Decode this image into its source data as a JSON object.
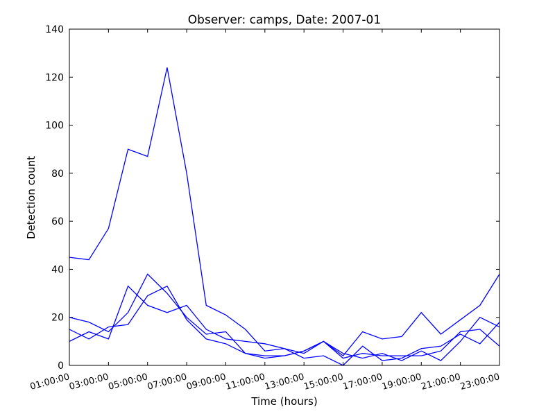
{
  "chart_data": {
    "type": "line",
    "title": "Observer: camps, Date: 2007-01",
    "x_label": "Time (hours)",
    "y_label": "Detection count",
    "categories": [
      "01:00:00",
      null,
      "03:00:00",
      null,
      "05:00:00",
      null,
      "07:00:00",
      null,
      "09:00:00",
      null,
      "11:00:00",
      null,
      "13:00:00",
      null,
      "15:00:00",
      null,
      "17:00:00",
      null,
      "19:00:00",
      null,
      "21:00:00",
      null,
      "23:00:00"
    ],
    "series": [
      {
        "color": "#0000ff",
        "values": [
          45,
          44,
          57,
          90,
          87,
          124,
          80,
          25,
          21,
          15,
          6,
          7,
          5,
          10,
          4,
          14,
          11,
          12,
          22,
          13,
          19,
          25,
          38
        ]
      },
      {
        "color": "#0000ff",
        "values": [
          20,
          18,
          14,
          22,
          38,
          30,
          20,
          13,
          14,
          5,
          3,
          4,
          6,
          10,
          5,
          3,
          5,
          2,
          6,
          2,
          10,
          20,
          16
        ]
      },
      {
        "color": "#0000ff",
        "values": [
          15,
          11,
          16,
          17,
          29,
          33,
          19,
          11,
          9,
          5,
          4,
          4,
          6,
          10,
          3,
          5,
          4,
          4,
          4,
          6,
          14,
          15,
          8
        ]
      },
      {
        "color": "#0000ff",
        "values": [
          10,
          14,
          11,
          33,
          25,
          22,
          25,
          15,
          11,
          10,
          9,
          7,
          3,
          4,
          0,
          8,
          2,
          3,
          7,
          8,
          13,
          9,
          18
        ]
      }
    ],
    "ylim": [
      0,
      140
    ],
    "yticks": [
      0,
      20,
      40,
      60,
      80,
      100,
      120,
      140
    ]
  }
}
